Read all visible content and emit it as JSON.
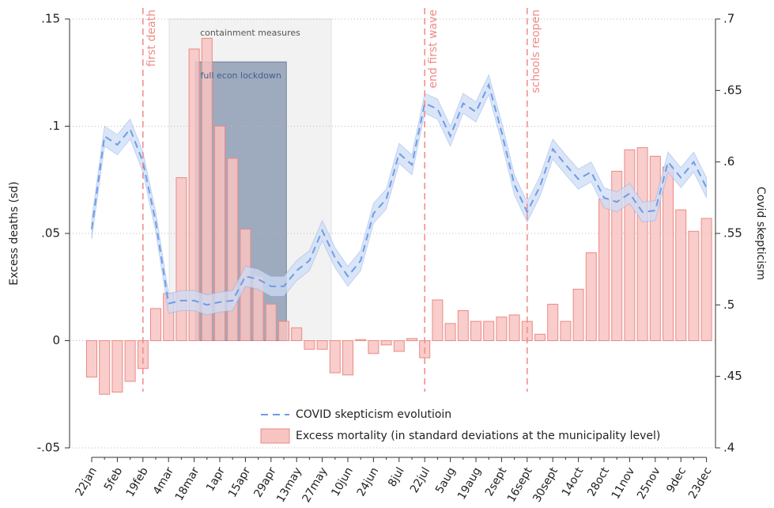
{
  "chart_data": {
    "type": "combo",
    "y_label": "Excess deaths (sd)",
    "y2_label": "Covid skepticism",
    "categories": [
      "22jan",
      null,
      "5feb",
      null,
      "19feb",
      null,
      "4mar",
      null,
      "18mar",
      null,
      "1apr",
      null,
      "15apr",
      null,
      "29apr",
      null,
      "13may",
      null,
      "27may",
      null,
      "10jun",
      null,
      "24jun",
      null,
      "8jul",
      null,
      "22jul",
      null,
      "5aug",
      null,
      "19aug",
      null,
      "2sept",
      null,
      "16sept",
      null,
      "30sept",
      null,
      "14oct",
      null,
      "28oct",
      null,
      "11nov",
      null,
      "25nov",
      null,
      "9dec",
      null,
      "23dec"
    ],
    "ylim": [
      -0.05,
      0.15
    ],
    "yticks": [
      {
        "value": 0.15,
        "label": ".15"
      },
      {
        "value": 0.1,
        "label": ".1"
      },
      {
        "value": 0.05,
        "label": ".05"
      },
      0,
      {
        "value": -0.05,
        "label": "-.05"
      }
    ],
    "y2lim": [
      0.4,
      0.7
    ],
    "y2ticks": [
      {
        "value": 0.7,
        "label": ".7"
      },
      {
        "value": 0.65,
        "label": ".65"
      },
      {
        "value": 0.6,
        "label": ".6"
      },
      {
        "value": 0.55,
        "label": ".55"
      },
      {
        "value": 0.5,
        "label": ".5"
      },
      {
        "value": 0.45,
        "label": ".45"
      },
      {
        "value": 0.4,
        "label": ".4"
      }
    ],
    "grid": true,
    "legend": "bottom",
    "series": [
      {
        "name": "COVID skepticism evolutioin",
        "type": "line",
        "axis": "y2",
        "color": "#6f9ce6",
        "band_color": "#cddcf6",
        "ci_halfwidth": 0.007,
        "values": [
          0.553,
          0.618,
          0.612,
          0.623,
          0.6,
          0.558,
          0.501,
          0.503,
          0.503,
          0.5,
          0.502,
          0.503,
          0.52,
          0.518,
          0.513,
          0.513,
          0.524,
          0.531,
          0.552,
          0.533,
          0.52,
          0.531,
          0.564,
          0.574,
          0.606,
          0.598,
          0.641,
          0.637,
          0.618,
          0.641,
          0.635,
          0.654,
          0.621,
          0.584,
          0.565,
          0.583,
          0.609,
          0.598,
          0.588,
          0.593,
          0.575,
          0.572,
          0.578,
          0.565,
          0.566,
          0.6,
          0.589,
          0.6,
          0.582
        ]
      },
      {
        "name": "Excess mortality (in standard deviations at the municipality level)",
        "type": "bar",
        "axis": "y",
        "color": "#f7c4c2",
        "edge_color": "#ec8a86",
        "values": [
          -0.017,
          -0.025,
          -0.024,
          -0.019,
          -0.013,
          0.015,
          0.022,
          0.076,
          0.136,
          0.141,
          0.1,
          0.085,
          0.052,
          0.03,
          0.017,
          0.009,
          0.006,
          -0.004,
          -0.004,
          -0.015,
          -0.016,
          0.0005,
          -0.006,
          -0.002,
          -0.005,
          0.001,
          -0.008,
          0.019,
          0.008,
          0.014,
          0.009,
          0.009,
          0.011,
          0.012,
          0.009,
          0.003,
          0.017,
          0.009,
          0.024,
          0.041,
          0.066,
          0.079,
          0.089,
          0.09,
          0.086,
          0.081,
          0.061,
          0.051,
          0.057
        ]
      }
    ],
    "vlines": [
      {
        "text": "first death",
        "x": 4,
        "color": "#f08a86"
      },
      {
        "text": "end first wave",
        "x": 26,
        "color": "#f08a86"
      },
      {
        "text": "schools reopen",
        "x": 34,
        "color": "#f08a86"
      }
    ],
    "regions": [
      {
        "text": "containment measures",
        "x": [
          6.05,
          18.7
        ],
        "y": [
          0,
          0.15
        ],
        "color": "#d9d9d9",
        "text_color": "#555"
      },
      {
        "text": "full econ lockdown",
        "x": [
          8.1,
          15.2
        ],
        "y": [
          0,
          0.13
        ],
        "color": "#5a6f92",
        "text_color": "#3f5f8f"
      }
    ]
  }
}
